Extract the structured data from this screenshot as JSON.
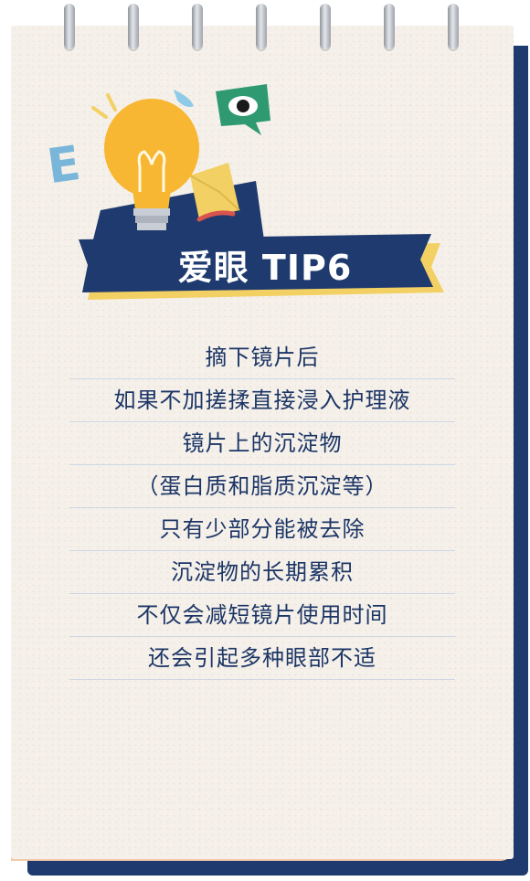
{
  "banner": {
    "title": "爱眼 TIP6"
  },
  "tips": [
    "摘下镜片后",
    "如果不加搓揉直接浸入护理液",
    "镜片上的沉淀物",
    "（蛋白质和脂质沉淀等）",
    "只有少部分能被去除",
    "沉淀物的长期累积",
    "不仅会减短镜片使用时间",
    "还会引起多种眼部不适"
  ],
  "illustration": {
    "letter": "E",
    "icons": [
      "lightbulb-icon",
      "eye-speech-bubble-icon",
      "letter-e-icon",
      "paper-plane-icon",
      "water-drop-icon"
    ]
  },
  "colors": {
    "navy": "#1e3a6e",
    "paper": "#f5f1ea",
    "bulb": "#f7b733",
    "yellow_accent": "#f3d063",
    "green": "#2f9a72",
    "text": "#1c3566"
  }
}
